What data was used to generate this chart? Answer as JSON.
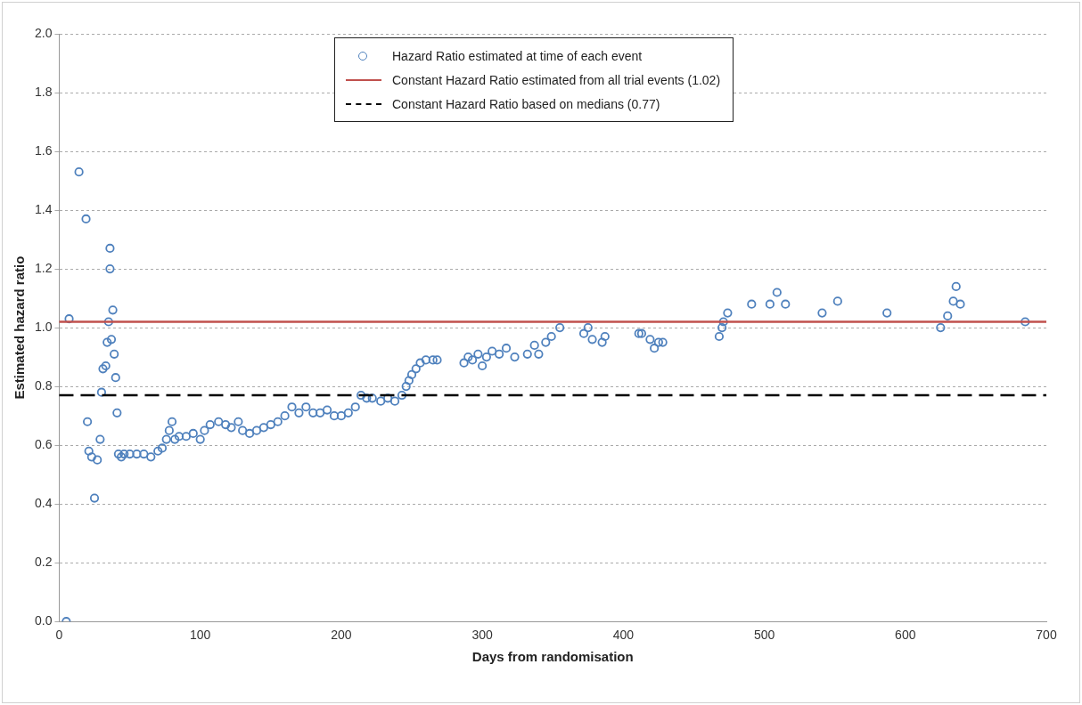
{
  "chart_data": {
    "type": "scatter",
    "xlabel": "Days from randomisation",
    "ylabel": "Estimated hazard ratio",
    "xlim": [
      0,
      700
    ],
    "xticks": [
      0,
      100,
      200,
      300,
      400,
      500,
      600,
      700
    ],
    "ylim": [
      0,
      2
    ],
    "yticks": [
      {
        "value": 0,
        "label": "0.0"
      },
      0.2,
      0.4,
      0.6,
      0.8,
      {
        "value": 1,
        "label": "1.0"
      },
      1.2,
      1.4,
      1.6,
      1.8,
      {
        "value": 2,
        "label": "2.0"
      }
    ],
    "grid": "y",
    "legend": "top",
    "marker": "circle",
    "series": [
      {
        "name": "Hazard Ratio estimated at time of each event",
        "color": "#4f81bd",
        "x": [
          5,
          7,
          14,
          19,
          20,
          21,
          23,
          25,
          27,
          29,
          30,
          31,
          33,
          34,
          35,
          36,
          36,
          37,
          38,
          39,
          40,
          41,
          42,
          44,
          46,
          50,
          55,
          60,
          65,
          70,
          73,
          76,
          78,
          80,
          82,
          85,
          90,
          95,
          100,
          103,
          107,
          113,
          118,
          122,
          127,
          130,
          135,
          140,
          145,
          150,
          155,
          160,
          165,
          170,
          175,
          180,
          185,
          190,
          195,
          200,
          205,
          210,
          214,
          218,
          222,
          228,
          233,
          238,
          243,
          246,
          248,
          250,
          253,
          256,
          260,
          265,
          268,
          287,
          290,
          293,
          297,
          300,
          303,
          307,
          312,
          317,
          323,
          332,
          337,
          340,
          345,
          349,
          355,
          372,
          375,
          378,
          385,
          387,
          411,
          413,
          419,
          422,
          425,
          428,
          468,
          470,
          471,
          474,
          491,
          504,
          509,
          515,
          541,
          552,
          587,
          625,
          630,
          634,
          636,
          639,
          685
        ],
        "values": [
          0.0,
          1.03,
          1.53,
          1.37,
          0.68,
          0.58,
          0.56,
          0.42,
          0.55,
          0.62,
          0.78,
          0.86,
          0.87,
          0.95,
          1.02,
          1.2,
          1.27,
          0.96,
          1.06,
          0.91,
          0.83,
          0.71,
          0.57,
          0.56,
          0.57,
          0.57,
          0.57,
          0.57,
          0.56,
          0.58,
          0.59,
          0.62,
          0.65,
          0.68,
          0.62,
          0.63,
          0.63,
          0.64,
          0.62,
          0.65,
          0.67,
          0.68,
          0.67,
          0.66,
          0.68,
          0.65,
          0.64,
          0.65,
          0.66,
          0.67,
          0.68,
          0.7,
          0.73,
          0.71,
          0.73,
          0.71,
          0.71,
          0.72,
          0.7,
          0.7,
          0.71,
          0.73,
          0.77,
          0.76,
          0.76,
          0.75,
          0.76,
          0.75,
          0.77,
          0.8,
          0.82,
          0.84,
          0.86,
          0.88,
          0.89,
          0.89,
          0.89,
          0.88,
          0.9,
          0.89,
          0.91,
          0.87,
          0.9,
          0.92,
          0.91,
          0.93,
          0.9,
          0.91,
          0.94,
          0.91,
          0.95,
          0.97,
          1.0,
          0.98,
          1.0,
          0.96,
          0.95,
          0.97,
          0.98,
          0.98,
          0.96,
          0.93,
          0.95,
          0.95,
          0.97,
          1.0,
          1.02,
          1.05,
          1.08,
          1.08,
          1.12,
          1.08,
          1.05,
          1.09,
          1.05,
          1.0,
          1.04,
          1.09,
          1.14,
          1.08,
          1.02
        ]
      }
    ],
    "ref_lines": [
      {
        "axis": "y",
        "value": 1.02,
        "label": "Constant Hazard Ratio estimated from all trial events (1.02)",
        "color": "#c0504d",
        "line_style": "solid"
      },
      {
        "axis": "y",
        "value": 0.77,
        "label": "Constant Hazard Ratio based on medians (0.77)",
        "color": "#000000",
        "line_style": "dashed"
      }
    ]
  }
}
